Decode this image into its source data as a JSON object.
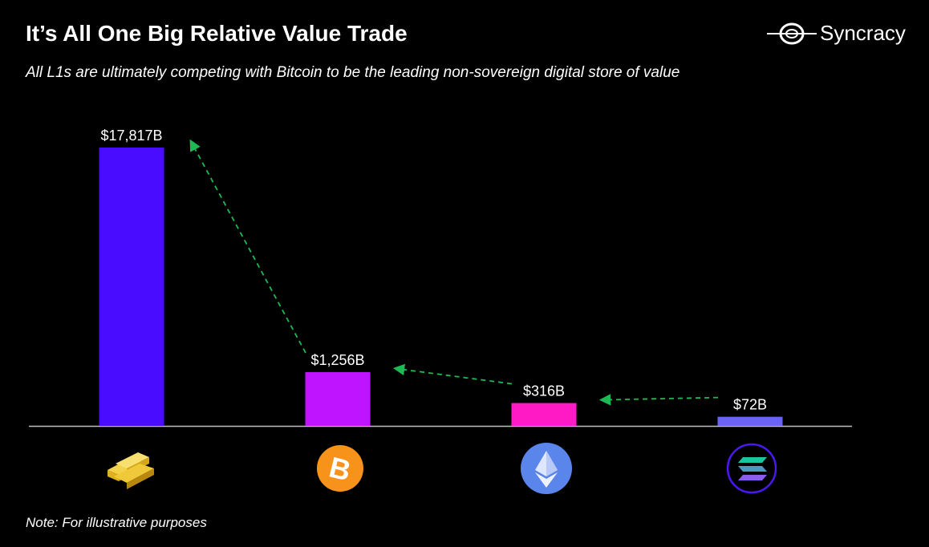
{
  "header": {
    "title": "It’s All One Big Relative Value Trade",
    "subtitle": "All L1s are ultimately competing with Bitcoin to be the leading non-sovereign digital store of value"
  },
  "logo": {
    "text": "Syncracy"
  },
  "note": "Note: For illustrative purposes",
  "chart_data": {
    "type": "bar",
    "categories": [
      "Gold",
      "Bitcoin",
      "Ethereum",
      "Solana"
    ],
    "category_icons": [
      "gold-bars-icon",
      "bitcoin-icon",
      "ethereum-icon",
      "solana-icon"
    ],
    "values": [
      17817,
      1256,
      316,
      72
    ],
    "data_labels": [
      "$17,817B",
      "$1,256B",
      "$316B",
      "$72B"
    ],
    "colors": [
      "#4A0CFF",
      "#BE14FF",
      "#FF1AC6",
      "#6A63F5"
    ],
    "arrow_color": "#1DB954",
    "unit": "$B",
    "axis_visible": false,
    "grid": false,
    "annotations": "dashed green arrows from Solana to Ethereum, Ethereum to Bitcoin, Bitcoin to Gold"
  }
}
